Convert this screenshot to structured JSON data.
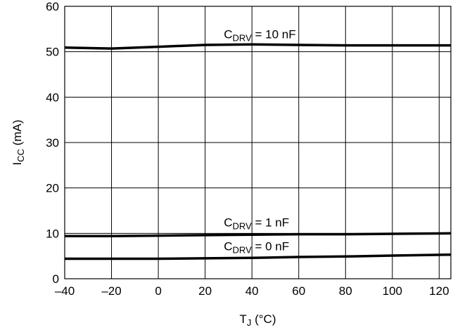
{
  "chart_data": {
    "type": "line",
    "title": "",
    "xlabel": {
      "main": "T",
      "sub": "J",
      "rest": " (°C)"
    },
    "ylabel": {
      "main": "I",
      "sub": "CC",
      "rest": " (mA)"
    },
    "xlim": [
      -40,
      125
    ],
    "ylim": [
      0,
      60
    ],
    "grid": true,
    "x_ticks": [
      -40,
      -20,
      0,
      20,
      40,
      60,
      80,
      100,
      120
    ],
    "x_tick_labels": [
      "–40",
      "–20",
      "0",
      "20",
      "40",
      "60",
      "80",
      "100",
      "120"
    ],
    "y_ticks": [
      0,
      10,
      20,
      30,
      40,
      50,
      60
    ],
    "y_tick_labels": [
      "0",
      "10",
      "20",
      "30",
      "40",
      "50",
      "60"
    ],
    "series": [
      {
        "name": "C_DRV = 10 nF",
        "label": {
          "main": "C",
          "sub": "DRV",
          "rest": " = 10 nF"
        },
        "x": [
          -40,
          -20,
          0,
          20,
          40,
          60,
          80,
          100,
          125
        ],
        "y": [
          50.9,
          50.7,
          51.1,
          51.5,
          51.6,
          51.5,
          51.4,
          51.4,
          51.4
        ]
      },
      {
        "name": "C_DRV = 1 nF",
        "label": {
          "main": "C",
          "sub": "DRV",
          "rest": " = 1 nF"
        },
        "x": [
          -40,
          -20,
          0,
          20,
          40,
          60,
          80,
          100,
          125
        ],
        "y": [
          9.4,
          9.4,
          9.5,
          9.6,
          9.7,
          9.8,
          9.8,
          9.9,
          10.0
        ]
      },
      {
        "name": "C_DRV = 0 nF",
        "label": {
          "main": "C",
          "sub": "DRV",
          "rest": " = 0 nF"
        },
        "x": [
          -40,
          -20,
          0,
          20,
          40,
          60,
          80,
          100,
          125
        ],
        "y": [
          4.4,
          4.4,
          4.4,
          4.5,
          4.6,
          4.8,
          4.9,
          5.1,
          5.3
        ]
      }
    ]
  }
}
